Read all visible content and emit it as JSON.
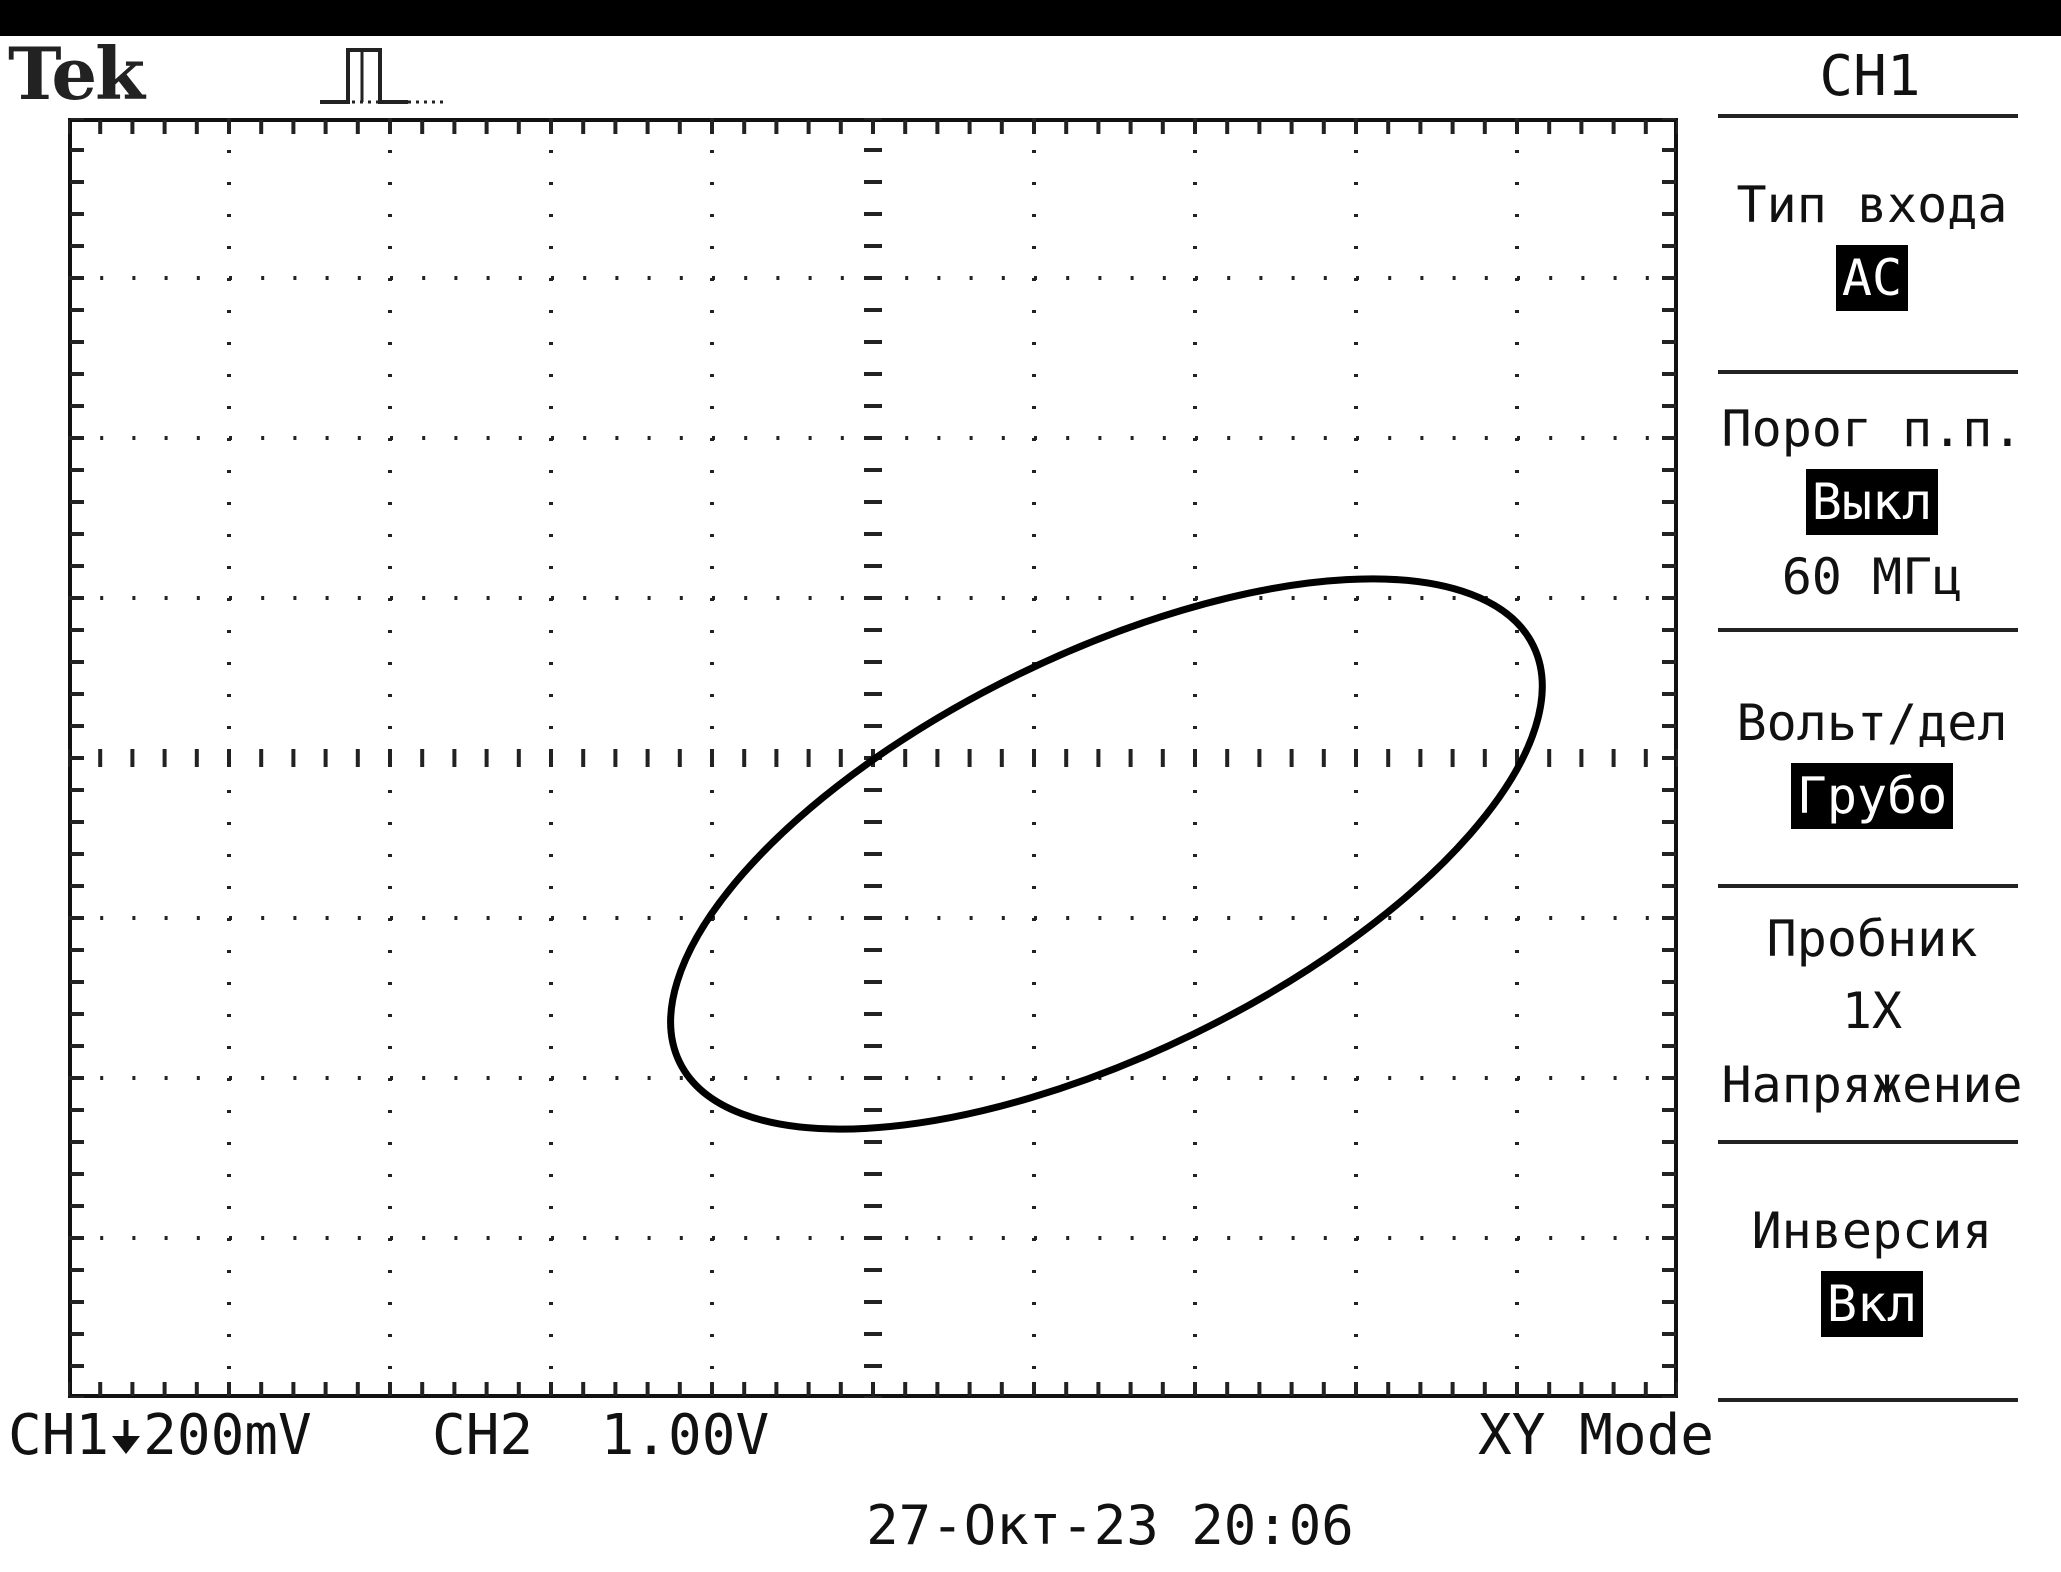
{
  "header": {
    "brand": "Tek",
    "trigger_icon": "pulse-trigger-icon"
  },
  "sidebar": {
    "channel_title": "CH1",
    "menu": [
      {
        "label": "Тип входа",
        "value": "AC"
      },
      {
        "label": "Порог п.п.",
        "value": "Выкл",
        "extra": "60 МГц"
      },
      {
        "label": "Вольт/дел",
        "value": "Грубо"
      },
      {
        "label": "Пробник",
        "value": "1X",
        "extra": "Напряжение"
      },
      {
        "label": "Инверсия",
        "value": "Вкл"
      }
    ]
  },
  "status": {
    "ch1_label": "CH1",
    "ch1_icon": "ground-arrow-icon",
    "ch1_scale": "200mV",
    "ch2_label": "CH2",
    "ch2_scale": "1.00V",
    "mode": "XY Mode",
    "datetime": "27-Окт-23 20:06"
  },
  "display": {
    "grid_divisions": {
      "x": 10,
      "y": 8
    },
    "trace_color": "#000000",
    "trace": {
      "type": "ellipse",
      "center_div": [
        1.45,
        -0.6
      ],
      "semi_axis_a_div": 2.95,
      "semi_axis_b_div": 1.25,
      "rotation_deg": 26
    }
  }
}
